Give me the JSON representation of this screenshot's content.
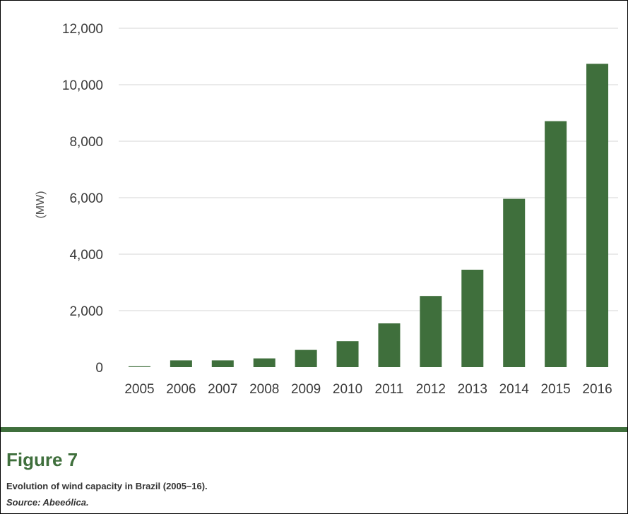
{
  "chart_data": {
    "type": "bar",
    "categories": [
      "2005",
      "2006",
      "2007",
      "2008",
      "2009",
      "2010",
      "2011",
      "2012",
      "2013",
      "2014",
      "2015",
      "2016"
    ],
    "values": [
      30,
      240,
      240,
      310,
      610,
      920,
      1550,
      2520,
      3450,
      5960,
      8710,
      10740
    ],
    "ylabel": "(MW)",
    "ylim": [
      0,
      12000
    ],
    "yticks": [
      0,
      2000,
      4000,
      6000,
      8000,
      10000,
      12000
    ],
    "ytick_labels": [
      "0",
      "2,000",
      "4,000",
      "6,000",
      "8,000",
      "10,000",
      "12,000"
    ],
    "grid": true,
    "bar_color": "#3f6f3c"
  },
  "figure": {
    "label": "Figure 7",
    "caption": "Evolution of wind capacity in Brazil (2005–16).",
    "source": "Source: Abeeólica."
  },
  "colors": {
    "accent": "#3f6f3c",
    "grid": "#d4d4d4"
  }
}
